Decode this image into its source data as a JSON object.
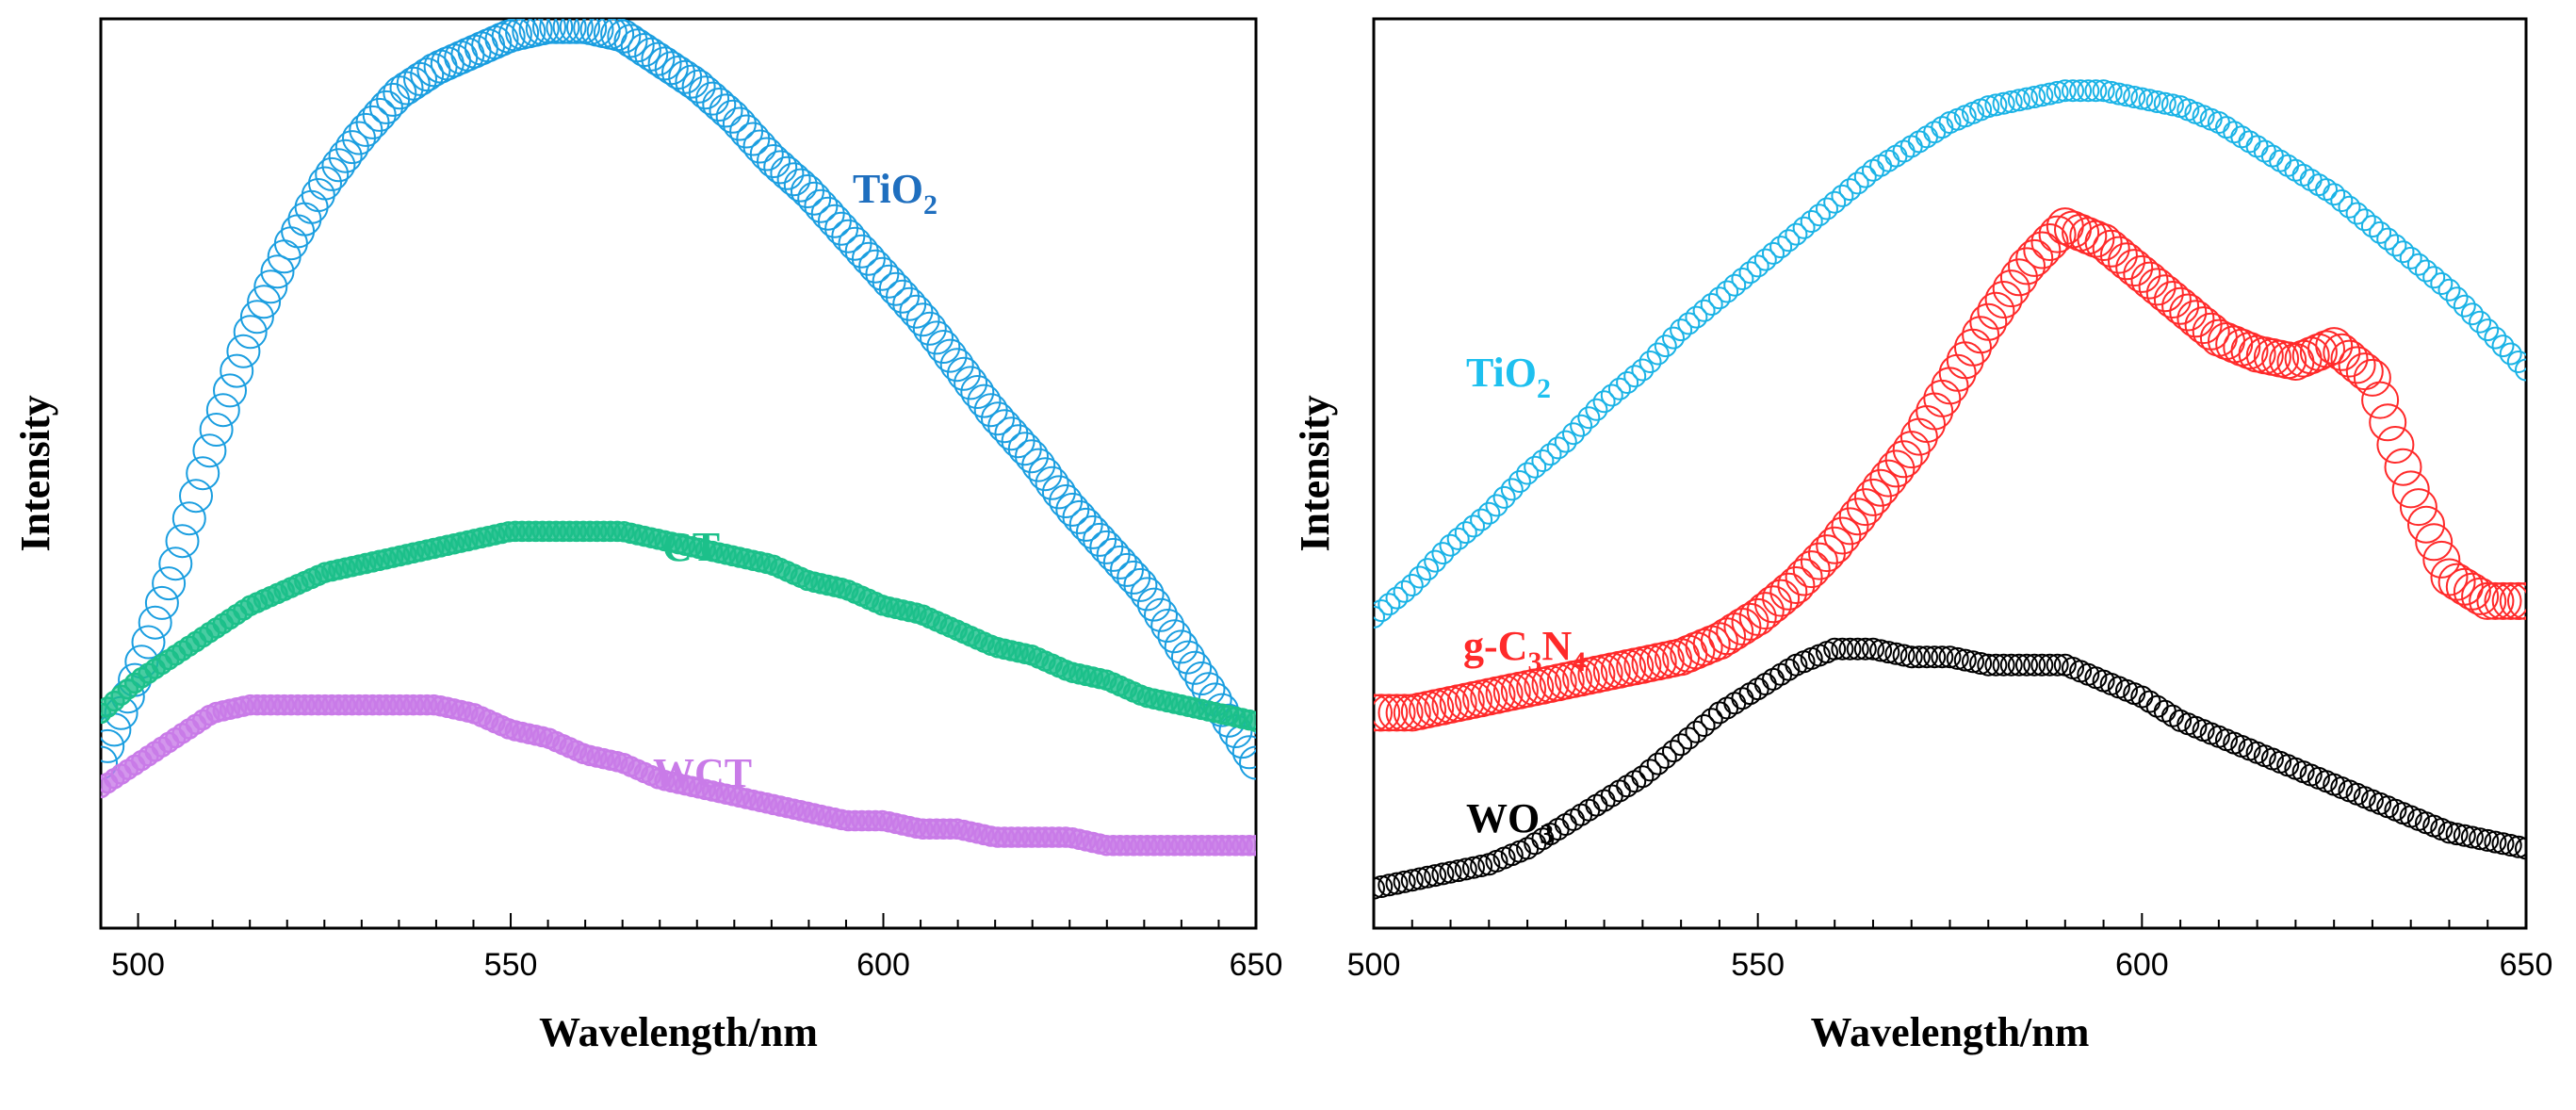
{
  "chart_data": [
    {
      "type": "scatter",
      "xlabel": "Wavelength/nm",
      "ylabel": "Intensity",
      "xlim": [
        495,
        650
      ],
      "ylim": [
        0,
        1
      ],
      "x_ticks": [
        500,
        550,
        600,
        650
      ],
      "y_ticks": [],
      "series": [
        {
          "name": "TiO2",
          "label": {
            "base": "TiO",
            "sub": "2"
          },
          "color": "#1a9ee0",
          "label_color": "#1f6fbf",
          "marker": "open-circle-large",
          "x": [
            495,
            500,
            505,
            510,
            515,
            520,
            525,
            530,
            535,
            540,
            545,
            550,
            555,
            560,
            565,
            570,
            575,
            580,
            585,
            590,
            595,
            600,
            605,
            610,
            615,
            620,
            625,
            630,
            635,
            640,
            645,
            650
          ],
          "y": [
            0.14,
            0.25,
            0.38,
            0.53,
            0.66,
            0.76,
            0.84,
            0.9,
            0.95,
            0.98,
            1.0,
            1.02,
            1.03,
            1.03,
            1.02,
            0.99,
            0.96,
            0.92,
            0.87,
            0.83,
            0.78,
            0.73,
            0.68,
            0.62,
            0.56,
            0.51,
            0.45,
            0.4,
            0.35,
            0.28,
            0.21,
            0.14
          ]
        },
        {
          "name": "CT",
          "label": {
            "base": "CT",
            "sub": ""
          },
          "color": "#1cc08a",
          "label_color": "#1cc08a",
          "marker": "filled-circle-small",
          "x": [
            495,
            500,
            505,
            510,
            515,
            520,
            525,
            530,
            535,
            540,
            545,
            550,
            555,
            560,
            565,
            570,
            575,
            580,
            585,
            590,
            595,
            600,
            605,
            610,
            615,
            620,
            625,
            630,
            635,
            640,
            645,
            650
          ],
          "y": [
            0.2,
            0.24,
            0.27,
            0.3,
            0.33,
            0.35,
            0.37,
            0.38,
            0.39,
            0.4,
            0.41,
            0.42,
            0.42,
            0.42,
            0.42,
            0.41,
            0.4,
            0.39,
            0.38,
            0.36,
            0.35,
            0.33,
            0.32,
            0.3,
            0.28,
            0.27,
            0.25,
            0.24,
            0.22,
            0.21,
            0.2,
            0.19
          ]
        },
        {
          "name": "WCT",
          "label": {
            "base": "WCT",
            "sub": ""
          },
          "color": "#c97be8",
          "label_color": "#c97be8",
          "marker": "filled-circle-small",
          "x": [
            495,
            500,
            505,
            510,
            515,
            520,
            525,
            530,
            535,
            540,
            545,
            550,
            555,
            560,
            565,
            570,
            575,
            580,
            585,
            590,
            595,
            600,
            605,
            610,
            615,
            620,
            625,
            630,
            635,
            640,
            645,
            650
          ],
          "y": [
            0.11,
            0.14,
            0.17,
            0.2,
            0.21,
            0.21,
            0.21,
            0.21,
            0.21,
            0.21,
            0.2,
            0.18,
            0.17,
            0.15,
            0.14,
            0.12,
            0.11,
            0.1,
            0.09,
            0.08,
            0.07,
            0.07,
            0.06,
            0.06,
            0.05,
            0.05,
            0.05,
            0.04,
            0.04,
            0.04,
            0.04,
            0.04
          ]
        }
      ]
    },
    {
      "type": "scatter",
      "xlabel": "Wavelength/nm",
      "ylabel": "Intensity",
      "xlim": [
        500,
        650
      ],
      "ylim": [
        0,
        1
      ],
      "x_ticks": [
        500,
        550,
        600,
        650
      ],
      "y_ticks": [],
      "series": [
        {
          "name": "TiO2",
          "label": {
            "base": "TiO",
            "sub": "2"
          },
          "color": "#1ab3e6",
          "label_color": "#1ec0ef",
          "marker": "open-circle-small",
          "x": [
            500,
            505,
            510,
            515,
            520,
            525,
            530,
            535,
            540,
            545,
            550,
            555,
            560,
            565,
            570,
            575,
            580,
            585,
            590,
            595,
            600,
            605,
            610,
            615,
            620,
            625,
            630,
            635,
            640,
            645,
            650
          ],
          "y": [
            0.34,
            0.38,
            0.43,
            0.47,
            0.52,
            0.56,
            0.61,
            0.65,
            0.7,
            0.74,
            0.78,
            0.82,
            0.86,
            0.9,
            0.93,
            0.96,
            0.98,
            0.99,
            1.0,
            1.0,
            0.99,
            0.98,
            0.96,
            0.93,
            0.9,
            0.87,
            0.83,
            0.79,
            0.75,
            0.7,
            0.65
          ]
        },
        {
          "name": "g-C3N4",
          "label": {
            "base": "g-C",
            "sub": "3",
            "base2": "N",
            "sub2": "4"
          },
          "color": "#ff2a2a",
          "label_color": "#ff2a2a",
          "marker": "open-circle-large",
          "x": [
            500,
            505,
            510,
            515,
            520,
            525,
            530,
            535,
            540,
            545,
            550,
            555,
            560,
            565,
            570,
            575,
            580,
            585,
            590,
            595,
            600,
            605,
            610,
            615,
            620,
            625,
            630,
            635,
            640,
            645,
            650
          ],
          "y": [
            0.22,
            0.22,
            0.23,
            0.24,
            0.25,
            0.26,
            0.27,
            0.28,
            0.29,
            0.31,
            0.34,
            0.38,
            0.43,
            0.49,
            0.55,
            0.63,
            0.71,
            0.78,
            0.83,
            0.81,
            0.77,
            0.73,
            0.69,
            0.67,
            0.66,
            0.68,
            0.64,
            0.5,
            0.39,
            0.36,
            0.36
          ]
        },
        {
          "name": "WO3",
          "label": {
            "base": "WO",
            "sub": "3"
          },
          "color": "#000000",
          "label_color": "#000000",
          "marker": "open-circle-small",
          "x": [
            500,
            505,
            510,
            515,
            520,
            525,
            530,
            535,
            540,
            545,
            550,
            555,
            560,
            565,
            570,
            575,
            580,
            585,
            590,
            595,
            600,
            605,
            610,
            615,
            620,
            625,
            630,
            635,
            640,
            645,
            650
          ],
          "y": [
            0.0,
            0.01,
            0.02,
            0.03,
            0.05,
            0.08,
            0.11,
            0.14,
            0.18,
            0.22,
            0.25,
            0.28,
            0.3,
            0.3,
            0.29,
            0.29,
            0.28,
            0.28,
            0.28,
            0.26,
            0.24,
            0.21,
            0.19,
            0.17,
            0.15,
            0.13,
            0.11,
            0.09,
            0.07,
            0.06,
            0.05
          ]
        }
      ]
    }
  ]
}
